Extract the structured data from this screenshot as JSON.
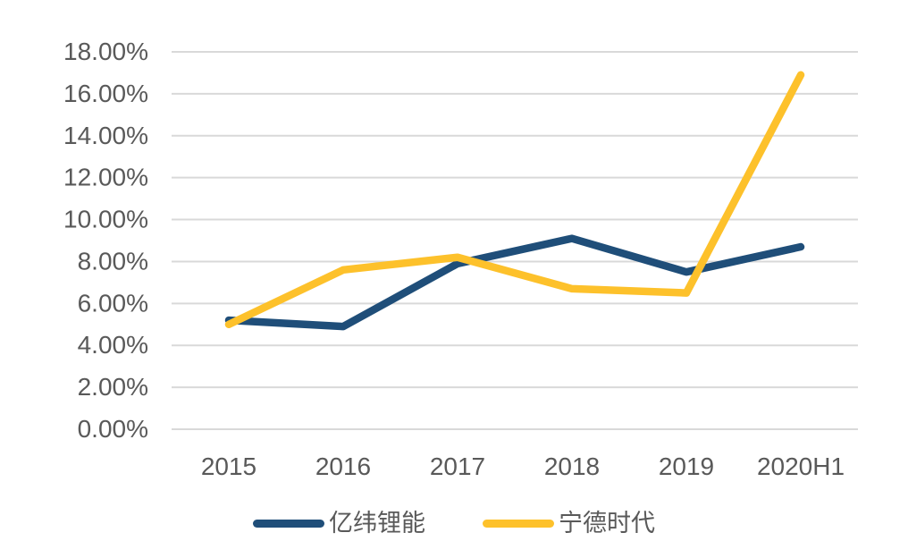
{
  "chart_data": {
    "type": "line",
    "title": "",
    "xlabel": "",
    "ylabel": "",
    "categories": [
      "2015",
      "2016",
      "2017",
      "2018",
      "2019",
      "2020H1"
    ],
    "series": [
      {
        "name": "亿纬锂能",
        "color": "#1F4E79",
        "values": [
          5.2,
          4.9,
          7.9,
          9.1,
          7.5,
          8.7
        ]
      },
      {
        "name": "宁德时代",
        "color": "#FDC12B",
        "values": [
          5.0,
          7.6,
          8.2,
          6.7,
          6.5,
          16.9
        ]
      }
    ],
    "y_axis": {
      "min": 0,
      "max": 18,
      "step": 2,
      "tick_labels": [
        "0.00%",
        "2.00%",
        "4.00%",
        "6.00%",
        "8.00%",
        "10.00%",
        "12.00%",
        "14.00%",
        "16.00%",
        "18.00%"
      ]
    },
    "grid": "horizontal",
    "gridline_color": "#D9D9D9",
    "tick_label_color": "#595959",
    "legend_position": "bottom"
  }
}
